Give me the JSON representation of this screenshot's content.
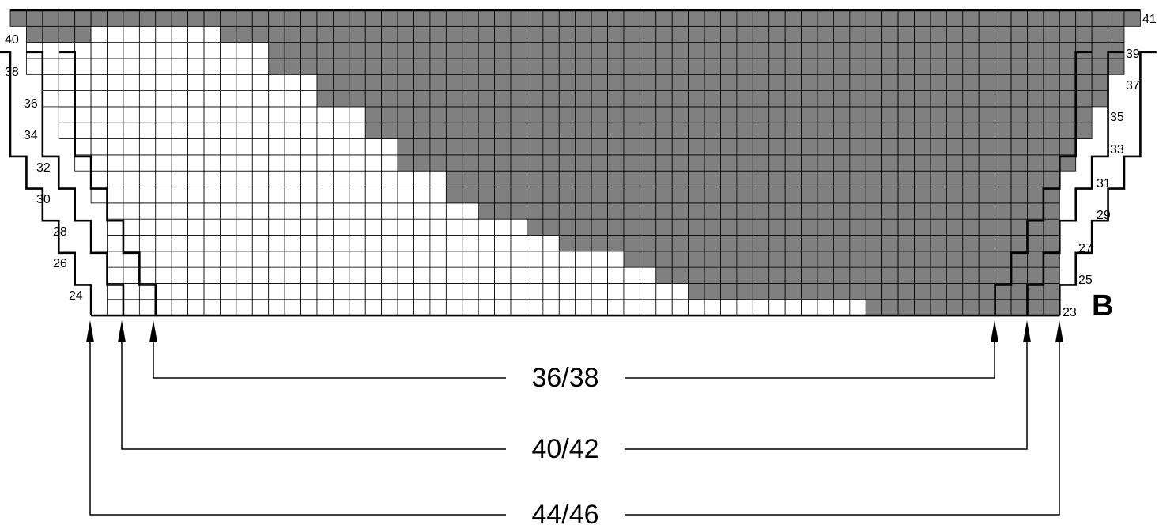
{
  "colors": {
    "filled_cell": "#808080",
    "empty_cell": "#ffffff",
    "grid_line": "#000000"
  },
  "chart": {
    "letter": "B",
    "left_row_labels": [
      "40",
      "38",
      "36",
      "34",
      "32",
      "30",
      "28",
      "26",
      "24"
    ],
    "right_row_labels": [
      "41",
      "39",
      "37",
      "35",
      "33",
      "31",
      "29",
      "27",
      "25",
      "23"
    ],
    "sizes": [
      {
        "label": "36/38"
      },
      {
        "label": "40/42"
      },
      {
        "label": "44/46"
      }
    ]
  }
}
